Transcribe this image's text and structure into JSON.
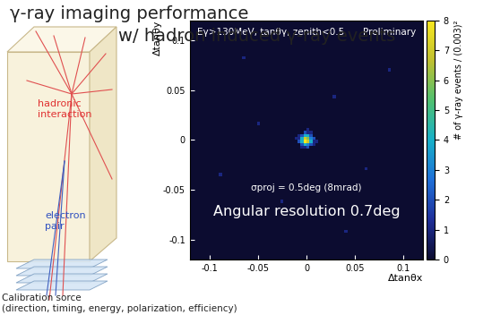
{
  "header": {
    "title": "γ-ray imaging performance",
    "subtitle": "w/ hadron induced γ-ray events"
  },
  "diagram": {
    "interaction_label": "hadronic\ninteraction",
    "pair_label": "electron\npair",
    "source_label": "Calibration sorce",
    "source_note": "(direction, timing, energy, polarization, efficiency)"
  },
  "chart_data": {
    "type": "heatmap",
    "x_label": "Δtanθx",
    "y_label": "Δtanθy",
    "annotations": [
      "Eγ>130MeV, tanθγ, zenith<0.5",
      "Preliminary",
      "σproj = 0.5deg (8mrad)",
      "Angular resolution 0.7deg"
    ],
    "xlim": [
      -0.12,
      0.12
    ],
    "ylim": [
      -0.12,
      0.12
    ],
    "xticks": [
      -0.1,
      -0.05,
      0,
      0.05,
      0.1
    ],
    "yticks": [
      -0.1,
      -0.05,
      0,
      0.05,
      0.1
    ],
    "bin_width": 0.003,
    "cells": [
      [
        -0.0015,
        -0.0015,
        8
      ],
      [
        0.0015,
        -0.0015,
        7
      ],
      [
        -0.0015,
        0.0015,
        7
      ],
      [
        0.0015,
        0.0015,
        6
      ],
      [
        -0.0045,
        -0.0015,
        4
      ],
      [
        0.0045,
        -0.0015,
        4
      ],
      [
        -0.0045,
        0.0015,
        4
      ],
      [
        0.0045,
        0.0015,
        3
      ],
      [
        -0.0015,
        -0.0045,
        4
      ],
      [
        0.0015,
        -0.0045,
        3
      ],
      [
        -0.0015,
        0.0045,
        4
      ],
      [
        0.0015,
        0.0045,
        4
      ],
      [
        -0.0045,
        -0.0045,
        2
      ],
      [
        0.0045,
        -0.0045,
        2
      ],
      [
        -0.0045,
        0.0045,
        2
      ],
      [
        0.0045,
        0.0045,
        2
      ],
      [
        -0.0075,
        -0.0015,
        2
      ],
      [
        0.0075,
        0.0015,
        2
      ],
      [
        -0.0015,
        0.0075,
        2
      ],
      [
        0.0015,
        -0.0075,
        2
      ],
      [
        -0.0075,
        0.0015,
        1
      ],
      [
        0.0075,
        -0.0015,
        1
      ],
      [
        0.0015,
        0.0075,
        1
      ],
      [
        -0.0015,
        -0.0075,
        1
      ],
      [
        -0.0075,
        0.0045,
        1
      ],
      [
        0.0075,
        -0.0045,
        1
      ],
      [
        -0.0045,
        -0.0075,
        1
      ],
      [
        0.0045,
        0.0075,
        1
      ],
      [
        -0.0105,
        0.0015,
        1
      ],
      [
        0.0105,
        -0.0015,
        1
      ],
      [
        0.0015,
        0.0105,
        1
      ],
      [
        0.0285,
        0.0435,
        1
      ],
      [
        -0.0495,
        0.0165,
        1
      ],
      [
        0.0615,
        -0.0285,
        1
      ],
      [
        -0.0255,
        -0.0615,
        1
      ],
      [
        0.0855,
        0.0705,
        1
      ],
      [
        -0.0885,
        -0.0345,
        1
      ],
      [
        0.0405,
        -0.0915,
        1
      ],
      [
        -0.0645,
        0.0825,
        1
      ]
    ],
    "color_label": "# of γ-ray events / (0.003)²",
    "color_range": [
      0,
      8
    ],
    "color_ticks": [
      0,
      1,
      2,
      3,
      4,
      5,
      6,
      7,
      8
    ]
  }
}
